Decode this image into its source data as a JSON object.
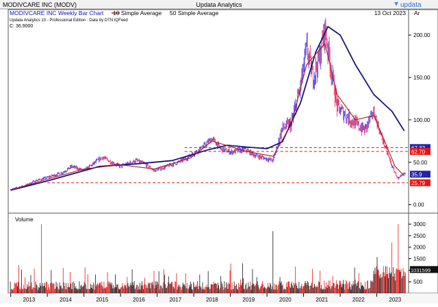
{
  "window": {
    "left_title": "MODIVCARE INC (MODV)",
    "center_title": "Updata Analytics",
    "brand": "updata"
  },
  "header": {
    "chart_title": "MODIVCARE INC Weekly Bar Chart",
    "legend_10": "10 Simple Average",
    "legend_50": "50 Simple Average",
    "date": "13 Oct 2023",
    "corner_label": "Ar",
    "edition": "Updata Analytics 10 - Professional Edition : Data by DTN IQFeed",
    "close": "C: 36.9000"
  },
  "colors": {
    "title_blue": "#1010c0",
    "sma10": "#b01818",
    "sma50": "#14147a",
    "bar_up": "#3030ee",
    "bar_down": "#ee2255",
    "vol_up": "#111111",
    "vol_down": "#ee1111",
    "badge_blue": "#2222aa",
    "badge_red": "#ee1111",
    "dashed_red": "#dd1111"
  },
  "chart_data": {
    "type": "bar",
    "price_axis": {
      "ticks": [
        "0.00",
        "50.00",
        "100.00",
        "150.00",
        "200.00"
      ],
      "ylim": [
        -10,
        230
      ]
    },
    "volume_axis": {
      "label": "Volume",
      "ticks": [
        "500",
        "1000",
        "1500",
        "2000",
        "2500",
        "3000"
      ],
      "ylim": [
        0,
        3300
      ]
    },
    "x_axis": {
      "ticks": [
        "2013",
        "2014",
        "2015",
        "2016",
        "2017",
        "2018",
        "2019",
        "2020",
        "2021",
        "2022",
        "2023"
      ]
    },
    "price_points": [
      [
        "2013-01",
        18
      ],
      [
        "2013-06",
        23
      ],
      [
        "2013-09",
        28
      ],
      [
        "2014-01",
        32
      ],
      [
        "2014-06",
        38
      ],
      [
        "2014-09",
        45
      ],
      [
        "2015-01",
        40
      ],
      [
        "2015-04",
        48
      ],
      [
        "2015-07",
        56
      ],
      [
        "2015-10",
        50
      ],
      [
        "2016-01",
        45
      ],
      [
        "2016-06",
        52
      ],
      [
        "2016-09",
        48
      ],
      [
        "2016-12",
        40
      ],
      [
        "2017-04",
        45
      ],
      [
        "2017-08",
        50
      ],
      [
        "2017-12",
        58
      ],
      [
        "2018-04",
        68
      ],
      [
        "2018-07",
        78
      ],
      [
        "2018-10",
        65
      ],
      [
        "2019-01",
        62
      ],
      [
        "2019-06",
        65
      ],
      [
        "2019-09",
        58
      ],
      [
        "2019-12",
        55
      ],
      [
        "2020-03",
        52
      ],
      [
        "2020-06",
        90
      ],
      [
        "2020-09",
        95
      ],
      [
        "2020-12",
        140
      ],
      [
        "2021-02",
        185
      ],
      [
        "2021-04",
        150
      ],
      [
        "2021-06",
        170
      ],
      [
        "2021-08",
        208
      ],
      [
        "2021-10",
        160
      ],
      [
        "2021-12",
        115
      ],
      [
        "2022-03",
        105
      ],
      [
        "2022-06",
        95
      ],
      [
        "2022-09",
        88
      ],
      [
        "2022-12",
        110
      ],
      [
        "2023-02",
        85
      ],
      [
        "2023-04",
        65
      ],
      [
        "2023-06",
        45
      ],
      [
        "2023-08",
        30
      ],
      [
        "2023-10",
        36.9
      ]
    ],
    "sma10_points": [
      [
        "2013-01",
        17
      ],
      [
        "2014-01",
        30
      ],
      [
        "2015-01",
        42
      ],
      [
        "2016-01",
        47
      ],
      [
        "2016-12",
        42
      ],
      [
        "2017-12",
        55
      ],
      [
        "2018-07",
        75
      ],
      [
        "2019-06",
        63
      ],
      [
        "2020-03",
        57
      ],
      [
        "2020-09",
        95
      ],
      [
        "2021-02",
        165
      ],
      [
        "2021-08",
        190
      ],
      [
        "2021-12",
        130
      ],
      [
        "2022-06",
        100
      ],
      [
        "2022-12",
        105
      ],
      [
        "2023-03",
        80
      ],
      [
        "2023-07",
        45
      ],
      [
        "2023-10",
        34
      ]
    ],
    "sma50_points": [
      [
        "2013-01",
        17
      ],
      [
        "2014-01",
        28
      ],
      [
        "2015-06",
        45
      ],
      [
        "2016-06",
        48
      ],
      [
        "2017-06",
        52
      ],
      [
        "2018-06",
        65
      ],
      [
        "2018-12",
        70
      ],
      [
        "2019-06",
        68
      ],
      [
        "2020-01",
        66
      ],
      [
        "2020-06",
        74
      ],
      [
        "2020-12",
        120
      ],
      [
        "2021-05",
        180
      ],
      [
        "2021-09",
        210
      ],
      [
        "2022-01",
        200
      ],
      [
        "2022-06",
        165
      ],
      [
        "2022-12",
        130
      ],
      [
        "2023-06",
        110
      ],
      [
        "2023-10",
        87
      ]
    ],
    "support_levels": [
      {
        "value": 67.32,
        "label": "67.32",
        "badge": "blue",
        "start": "2017-10"
      },
      {
        "value": 62.7,
        "label": "62.70",
        "badge": "red",
        "start": "2017-10"
      },
      {
        "value": 35.9,
        "label": "35.9",
        "badge": "blue",
        "start": null
      },
      {
        "value": 25.79,
        "label": "25.79",
        "badge": "red",
        "start": "2014-01"
      }
    ],
    "volume_peaks": [
      {
        "date": "2013-11",
        "value": 3000
      },
      {
        "date": "2020-03",
        "value": 2700
      },
      {
        "date": "2023-08",
        "value": 3000
      },
      {
        "date": "2023-06",
        "value": 2200
      }
    ],
    "volume_last_label": "1031599"
  }
}
